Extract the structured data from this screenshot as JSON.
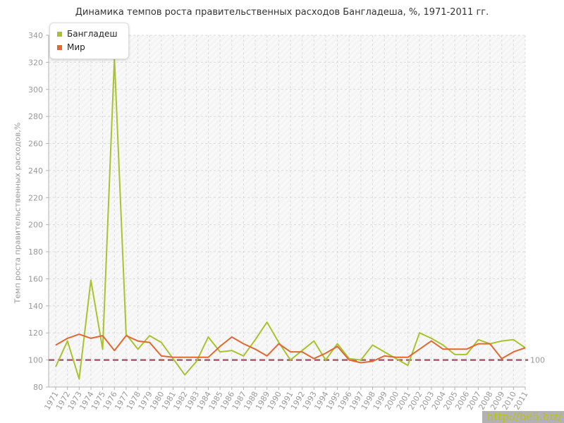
{
  "chart_data": {
    "type": "line",
    "title": "Динамика темпов роста правительственных расходов Бангладеша, %, 1971-2011 гг.",
    "ylabel": "Темп роста правительственных расходов,%",
    "ylim": [
      80,
      340
    ],
    "yticks": [
      80,
      100,
      120,
      140,
      160,
      180,
      200,
      220,
      240,
      260,
      280,
      300,
      320,
      340
    ],
    "x": [
      1971,
      1972,
      1973,
      1974,
      1975,
      1976,
      1977,
      1978,
      1979,
      1980,
      1981,
      1982,
      1983,
      1984,
      1985,
      1986,
      1987,
      1988,
      1989,
      1990,
      1991,
      1992,
      1993,
      1994,
      1995,
      1996,
      1997,
      1998,
      1999,
      2000,
      2001,
      2002,
      2003,
      2004,
      2005,
      2006,
      2007,
      2008,
      2009,
      2010,
      2011
    ],
    "series": [
      {
        "name": "Бангладеш",
        "color": "#a9c32e",
        "values": [
          95,
          114,
          86,
          159,
          108,
          323,
          119,
          108,
          118,
          113,
          101,
          89,
          99,
          117,
          106,
          107,
          103,
          115,
          128,
          113,
          100,
          107,
          114,
          100,
          112,
          101,
          100,
          111,
          106,
          101,
          96,
          120,
          116,
          111,
          104,
          104,
          115,
          112,
          114,
          115,
          109
        ]
      },
      {
        "name": "Мир",
        "color": "#e2682f",
        "values": [
          111,
          116,
          119,
          116,
          118,
          107,
          118,
          114,
          113,
          103,
          102,
          102,
          102,
          102,
          110,
          117,
          112,
          108,
          103,
          112,
          106,
          106,
          101,
          105,
          110,
          100,
          98,
          99,
          103,
          102,
          102,
          108,
          114,
          108,
          108,
          108,
          112,
          112,
          101,
          106,
          109
        ]
      }
    ],
    "guide": {
      "value": 100,
      "label": "100",
      "color": "#a85a6d",
      "label_color": "#993a44"
    },
    "legend_position": "top-left",
    "grid": true,
    "grid_color": "#dcdcdc",
    "axis_color": "#b3b3b3",
    "tick_label_color": "#999999",
    "plot_bg": "#f4f4f4"
  },
  "watermark": {
    "text": "http://be5.biz/",
    "text_color": "#b9c40b",
    "bg_color": "#b2b2b2"
  }
}
